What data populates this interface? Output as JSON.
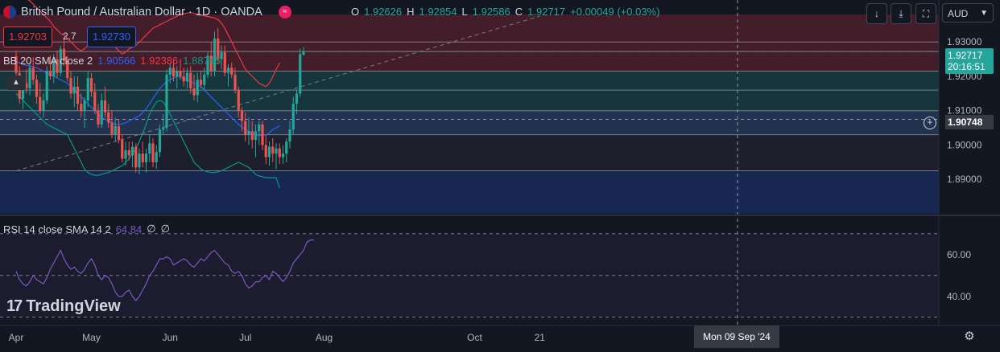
{
  "header": {
    "title": "British Pound / Australian Dollar · 1D · OANDA",
    "market_closed_icon": "market-closed-icon",
    "ohlc": [
      {
        "k": "O",
        "v": "1.92626"
      },
      {
        "k": "H",
        "v": "1.92854"
      },
      {
        "k": "L",
        "v": "1.92586"
      },
      {
        "k": "C",
        "v": "1.92717"
      },
      {
        "k": "",
        "v": "+0.00049 (+0.03%)"
      }
    ]
  },
  "quotes": {
    "sell": "1.92703",
    "spread": "2.7",
    "buy": "1.92730"
  },
  "indicators": {
    "bb": {
      "name": "BB 20 SMA close 2",
      "basis": "1.90566",
      "upper": "1.92386",
      "lower": "1.88745",
      "colors": {
        "basis": "#2962ff",
        "upper": "#f23645",
        "lower": "#089981"
      }
    },
    "rsi": {
      "name": "RSI 14 close SMA 14 2",
      "value": "64.84",
      "extra1": "∅",
      "extra2": "∅",
      "color": "#7e57c2"
    }
  },
  "toolbar": {
    "currency": "AUD",
    "icons": [
      "arrow-down-icon",
      "collapse-icon",
      "fullscreen-icon"
    ]
  },
  "branding": {
    "name": "TradingView"
  },
  "crosshair": {
    "price": "1.90748",
    "date": "Mon 09 Sep '24"
  },
  "last_price": {
    "price": "1.92717",
    "countdown": "20:16:51"
  },
  "colors": {
    "up": "#26a69a",
    "down": "#ef5350",
    "background": "#131722"
  },
  "chart_data": [
    {
      "type": "candlestick",
      "title": "British Pound / Australian Dollar · 1D · OANDA",
      "xlabel": "",
      "ylabel": "",
      "ylim": [
        1.88,
        1.938
      ],
      "y_ticks": [
        "1.93000",
        "1.92000",
        "1.91000",
        "1.90000",
        "1.89000"
      ],
      "y_tick_values": [
        1.93,
        1.92,
        1.91,
        1.9,
        1.89
      ],
      "x_tick_labels": [
        "Apr",
        "May",
        "Jun",
        "Jul",
        "Aug",
        "Oct",
        "21"
      ],
      "x_tick_index": [
        0,
        22,
        45,
        67,
        90,
        134,
        153
      ],
      "x_last_index": 144,
      "candles": [
        [
          1.9258,
          1.9275,
          1.9195,
          1.921
        ],
        [
          1.921,
          1.923,
          1.912,
          1.9135
        ],
        [
          1.9135,
          1.9195,
          1.9105,
          1.918
        ],
        [
          1.918,
          1.922,
          1.915,
          1.9165
        ],
        [
          1.9165,
          1.924,
          1.9145,
          1.9225
        ],
        [
          1.9225,
          1.9255,
          1.9175,
          1.919
        ],
        [
          1.919,
          1.9205,
          1.912,
          1.914
        ],
        [
          1.914,
          1.918,
          1.909,
          1.91
        ],
        [
          1.91,
          1.915,
          1.908,
          1.913
        ],
        [
          1.913,
          1.923,
          1.912,
          1.9215
        ],
        [
          1.9215,
          1.926,
          1.919,
          1.92
        ],
        [
          1.92,
          1.9265,
          1.918,
          1.925
        ],
        [
          1.925,
          1.9275,
          1.9195,
          1.921
        ],
        [
          1.921,
          1.929,
          1.92,
          1.928
        ],
        [
          1.928,
          1.931,
          1.923,
          1.9245
        ],
        [
          1.9245,
          1.926,
          1.9185,
          1.9195
        ],
        [
          1.9195,
          1.9215,
          1.9135,
          1.915
        ],
        [
          1.915,
          1.92,
          1.911,
          1.917
        ],
        [
          1.917,
          1.92,
          1.91,
          1.912
        ],
        [
          1.912,
          1.915,
          1.908,
          1.91
        ],
        [
          1.91,
          1.914,
          1.905,
          1.913
        ],
        [
          1.913,
          1.9215,
          1.911,
          1.9195
        ],
        [
          1.9195,
          1.921,
          1.914,
          1.9155
        ],
        [
          1.9155,
          1.918,
          1.909,
          1.91
        ],
        [
          1.91,
          1.912,
          1.905,
          1.906
        ],
        [
          1.906,
          1.915,
          1.905,
          1.913
        ],
        [
          1.913,
          1.917,
          1.908,
          1.9095
        ],
        [
          1.9095,
          1.912,
          1.905,
          1.9065
        ],
        [
          1.9065,
          1.91,
          1.902,
          1.903
        ],
        [
          1.903,
          1.908,
          1.901,
          1.9055
        ],
        [
          1.9055,
          1.9075,
          1.9005,
          1.9015
        ],
        [
          1.9015,
          1.903,
          1.895,
          1.896
        ],
        [
          1.896,
          1.901,
          1.894,
          1.8985
        ],
        [
          1.8985,
          1.901,
          1.8955,
          1.897
        ],
        [
          1.897,
          1.901,
          1.8935,
          1.8995
        ],
        [
          1.8995,
          1.9005,
          1.892,
          1.8935
        ],
        [
          1.8935,
          1.899,
          1.8915,
          1.8975
        ],
        [
          1.8975,
          1.901,
          1.8935,
          1.895
        ],
        [
          1.895,
          1.899,
          1.892,
          1.8975
        ],
        [
          1.8975,
          1.903,
          1.895,
          1.9005
        ],
        [
          1.9005,
          1.902,
          1.8935,
          1.895
        ],
        [
          1.895,
          1.9,
          1.893,
          1.898
        ],
        [
          1.898,
          1.906,
          1.8965,
          1.9045
        ],
        [
          1.9045,
          1.909,
          1.903,
          1.905
        ],
        [
          1.905,
          1.922,
          1.904,
          1.9205
        ],
        [
          1.9205,
          1.924,
          1.918,
          1.9225
        ],
        [
          1.9225,
          1.9245,
          1.9185,
          1.92
        ],
        [
          1.92,
          1.923,
          1.9165,
          1.9215
        ],
        [
          1.9215,
          1.925,
          1.919,
          1.92
        ],
        [
          1.92,
          1.9225,
          1.917,
          1.9185
        ],
        [
          1.9185,
          1.9225,
          1.9165,
          1.921
        ],
        [
          1.921,
          1.923,
          1.915,
          1.9165
        ],
        [
          1.9165,
          1.9205,
          1.913,
          1.9145
        ],
        [
          1.9145,
          1.921,
          1.9125,
          1.919
        ],
        [
          1.919,
          1.9215,
          1.9165,
          1.9175
        ],
        [
          1.9175,
          1.9225,
          1.916,
          1.9205
        ],
        [
          1.9205,
          1.927,
          1.9195,
          1.926
        ],
        [
          1.926,
          1.93,
          1.92,
          1.9215
        ],
        [
          1.9215,
          1.933,
          1.92,
          1.931
        ],
        [
          1.931,
          1.934,
          1.9235,
          1.925
        ],
        [
          1.925,
          1.929,
          1.922,
          1.927
        ],
        [
          1.927,
          1.929,
          1.92,
          1.921
        ],
        [
          1.921,
          1.9235,
          1.917,
          1.9225
        ],
        [
          1.9225,
          1.924,
          1.9195,
          1.9205
        ],
        [
          1.9205,
          1.9225,
          1.915,
          1.916
        ],
        [
          1.916,
          1.917,
          1.908,
          1.91
        ],
        [
          1.91,
          1.911,
          1.904,
          1.907
        ],
        [
          1.907,
          1.9095,
          1.901,
          1.903
        ],
        [
          1.903,
          1.908,
          1.9,
          1.904
        ],
        [
          1.904,
          1.907,
          1.899,
          1.9015
        ],
        [
          1.9015,
          1.906,
          1.8965,
          1.904
        ],
        [
          1.904,
          1.907,
          1.9,
          1.906
        ],
        [
          1.906,
          1.907,
          1.8985,
          1.9
        ],
        [
          1.9,
          1.903,
          1.8945,
          1.8965
        ],
        [
          1.8965,
          1.901,
          1.894,
          1.8995
        ],
        [
          1.8995,
          1.902,
          1.895,
          1.8975
        ],
        [
          1.8975,
          1.9005,
          1.893,
          1.899
        ],
        [
          1.899,
          1.9005,
          1.8945,
          1.8965
        ],
        [
          1.8965,
          1.9,
          1.8945,
          1.8975
        ],
        [
          1.8975,
          1.902,
          1.895,
          1.901
        ],
        [
          1.901,
          1.907,
          1.899,
          1.9045
        ],
        [
          1.9045,
          1.914,
          1.903,
          1.912
        ],
        [
          1.912,
          1.916,
          1.909,
          1.915
        ],
        [
          1.915,
          1.928,
          1.914,
          1.9265
        ],
        [
          1.9263,
          1.9285,
          1.9259,
          1.9272
        ]
      ],
      "bb_upper": [
        1.945,
        1.944,
        1.9435,
        1.9425,
        1.942,
        1.941,
        1.94,
        1.939,
        1.938,
        1.937,
        1.936,
        1.9345,
        1.9335,
        1.9325,
        1.932,
        1.931,
        1.93,
        1.929,
        1.928,
        1.9275,
        1.928,
        1.929,
        1.93,
        1.931,
        1.9315,
        1.932,
        1.931,
        1.93,
        1.9295,
        1.9285,
        1.9275,
        1.9265,
        1.927,
        1.928,
        1.9285,
        1.929,
        1.93,
        1.931,
        1.932,
        1.933,
        1.934,
        1.9345,
        1.935,
        1.9355,
        1.936,
        1.9365,
        1.937,
        1.9375,
        1.938,
        1.9382,
        1.9384,
        1.9385,
        1.9383,
        1.938,
        1.9378,
        1.9376,
        1.9374,
        1.9372,
        1.937,
        1.9365,
        1.9355,
        1.934,
        1.932,
        1.93,
        1.928,
        1.926,
        1.924,
        1.922,
        1.921,
        1.92,
        1.919,
        1.918,
        1.9175,
        1.917,
        1.918,
        1.92,
        1.922,
        1.9239
      ],
      "bb_basis": [
        1.924,
        1.924,
        1.9235,
        1.9232,
        1.923,
        1.9228,
        1.9225,
        1.922,
        1.9215,
        1.921,
        1.9205,
        1.92,
        1.9195,
        1.919,
        1.9185,
        1.918,
        1.917,
        1.916,
        1.915,
        1.914,
        1.913,
        1.912,
        1.911,
        1.91,
        1.909,
        1.908,
        1.9075,
        1.907,
        1.9065,
        1.906,
        1.906,
        1.9062,
        1.9065,
        1.907,
        1.9075,
        1.908,
        1.9085,
        1.9095,
        1.9105,
        1.912,
        1.9135,
        1.915,
        1.9165,
        1.9175,
        1.9185,
        1.919,
        1.9195,
        1.92,
        1.9198,
        1.9195,
        1.919,
        1.9185,
        1.918,
        1.9175,
        1.917,
        1.916,
        1.915,
        1.914,
        1.913,
        1.912,
        1.911,
        1.91,
        1.909,
        1.908,
        1.907,
        1.906,
        1.9052,
        1.9045,
        1.904,
        1.9035,
        1.903,
        1.9028,
        1.9028,
        1.903,
        1.9035,
        1.9045,
        1.905,
        1.9057
      ],
      "bb_lower": [
        1.915,
        1.914,
        1.913,
        1.912,
        1.911,
        1.91,
        1.909,
        1.908,
        1.907,
        1.906,
        1.9055,
        1.905,
        1.9045,
        1.904,
        1.9035,
        1.903,
        1.901,
        1.899,
        1.897,
        1.895,
        1.893,
        1.892,
        1.8915,
        1.8912,
        1.8912,
        1.8915,
        1.8918,
        1.892,
        1.8925,
        1.893,
        1.8935,
        1.894,
        1.895,
        1.896,
        1.8975,
        1.899,
        1.901,
        1.9035,
        1.906,
        1.909,
        1.911,
        1.9125,
        1.913,
        1.9125,
        1.911,
        1.909,
        1.907,
        1.905,
        1.903,
        1.901,
        1.899,
        1.897,
        1.895,
        1.894,
        1.893,
        1.8925,
        1.8922,
        1.892,
        1.892,
        1.8922,
        1.8925,
        1.893,
        1.8935,
        1.894,
        1.8945,
        1.895,
        1.8945,
        1.894,
        1.8935,
        1.8925,
        1.8915,
        1.891,
        1.8908,
        1.8905,
        1.8905,
        1.8905,
        1.8905,
        1.8875
      ],
      "bb_start_index": 0,
      "price_zones": [
        {
          "from": 1.9215,
          "to": 1.938,
          "color": "#f23645"
        },
        {
          "from": 1.91,
          "to": 1.9215,
          "color": "#26a69a"
        },
        {
          "from": 1.903,
          "to": 1.91,
          "color": "#5b9cf6"
        },
        {
          "from": 1.8925,
          "to": 1.903,
          "color": "#434651"
        },
        {
          "from": 1.88,
          "to": 1.8925,
          "color": "#2962ff"
        }
      ],
      "horizontal_levels": [
        1.93,
        1.9272,
        1.9215,
        1.916,
        1.91,
        1.903,
        1.8925
      ],
      "trendline": {
        "from": [
          0,
          1.8925
        ],
        "to": [
          153,
          1.9375
        ]
      }
    },
    {
      "type": "line",
      "title": "RSI 14 close SMA 14 2",
      "ylim": [
        28,
        78
      ],
      "y_ticks": [
        "60.00",
        "40.00"
      ],
      "y_tick_values": [
        60,
        40
      ],
      "levels": [
        70,
        50,
        30
      ],
      "series": [
        {
          "name": "RSI",
          "values": [
            52,
            48,
            46,
            45,
            47,
            50,
            48,
            47,
            46,
            49,
            53,
            56,
            59,
            62,
            58,
            55,
            53,
            54,
            52,
            51,
            53,
            56,
            58,
            55,
            50,
            48,
            50,
            49,
            46,
            42,
            40,
            40,
            42,
            43,
            40,
            38,
            40,
            43,
            46,
            50,
            52,
            55,
            58,
            58,
            59,
            58,
            55,
            56,
            57,
            58,
            57,
            55,
            54,
            56,
            58,
            57,
            59,
            61,
            62,
            60,
            58,
            56,
            55,
            52,
            51,
            52,
            50,
            46,
            44,
            45,
            47,
            47,
            49,
            50,
            48,
            52,
            51,
            49,
            47,
            49,
            52,
            56,
            58,
            60,
            62,
            66,
            67,
            67
          ]
        }
      ]
    }
  ]
}
